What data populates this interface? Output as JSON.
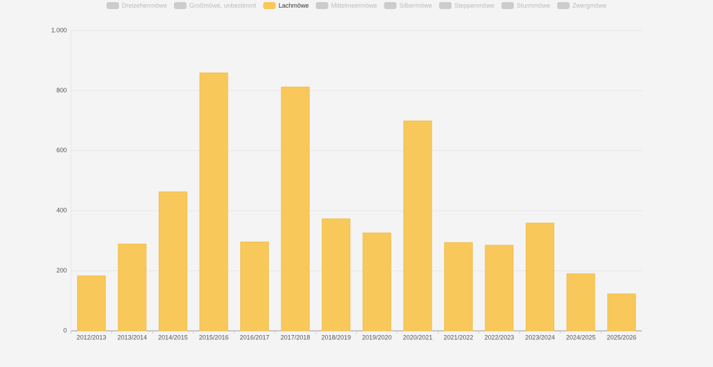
{
  "chart_data": {
    "type": "bar",
    "legend": [
      {
        "name": "Dreizehenmöwe",
        "color": "#cccccc",
        "hidden": true
      },
      {
        "name": "Großmöwe, unbestimmt",
        "color": "#cccccc",
        "hidden": true
      },
      {
        "name": "Lachmöwe",
        "color": "#f9c85a",
        "hidden": false
      },
      {
        "name": "Mittelmeermöwe",
        "color": "#cccccc",
        "hidden": true
      },
      {
        "name": "Silbermöwe",
        "color": "#cccccc",
        "hidden": true
      },
      {
        "name": "Steppenmöwe",
        "color": "#cccccc",
        "hidden": true
      },
      {
        "name": "Sturmmöwe",
        "color": "#cccccc",
        "hidden": true
      },
      {
        "name": "Zwergmöwe",
        "color": "#cccccc",
        "hidden": true
      }
    ],
    "categories": [
      "2012/2013",
      "2013/2014",
      "2014/2015",
      "2015/2016",
      "2016/2017",
      "2017/2018",
      "2018/2019",
      "2019/2020",
      "2020/2021",
      "2021/2022",
      "2022/2023",
      "2023/2024",
      "2024/2025",
      "2025/2026"
    ],
    "series": [
      {
        "name": "Lachmöwe",
        "color": "#f9c85a",
        "values": [
          183,
          289,
          463,
          859,
          296,
          812,
          373,
          326,
          699,
          294,
          285,
          359,
          190,
          123
        ]
      }
    ],
    "ylim": [
      0,
      1000
    ],
    "yticks": [
      0,
      200,
      400,
      600,
      800,
      {
        "value": 1000,
        "label": "1.000"
      }
    ],
    "grid": true
  }
}
